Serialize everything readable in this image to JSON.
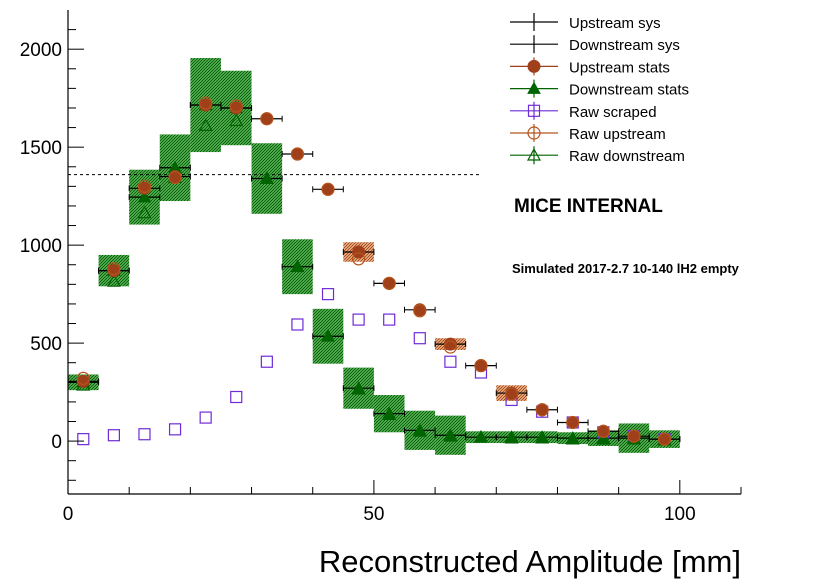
{
  "chart_data": {
    "type": "scatter",
    "title": "",
    "xlabel": "Reconstructed Amplitude [mm]",
    "ylabel": "",
    "xlim": [
      0,
      110
    ],
    "ylim": [
      -270,
      2200
    ],
    "x_ticks": [
      0,
      50,
      100
    ],
    "x_tick_labels": [
      "0",
      "50",
      "100"
    ],
    "y_ticks": [
      0,
      500,
      1000,
      1500,
      2000
    ],
    "y_tick_labels": [
      "0",
      "500",
      "1000",
      "1500",
      "2000"
    ],
    "grid": false,
    "legend_position": "top-right",
    "reference_line": {
      "y": 1360,
      "x_from": 0,
      "x_to": 67.5,
      "style": "dashed"
    },
    "x": [
      2.5,
      7.5,
      12.5,
      17.5,
      22.5,
      27.5,
      32.5,
      37.5,
      42.5,
      47.5,
      52.5,
      57.5,
      62.5,
      67.5,
      72.5,
      77.5,
      82.5,
      87.5,
      92.5,
      97.5
    ],
    "x_bin_halfwidth": 2.5,
    "series": [
      {
        "name": "Upstream sys",
        "kind": "error-bar",
        "color": "#000000",
        "values": [
          305,
          870,
          1290,
          1350,
          1715,
          1700,
          1645,
          1465,
          1285,
          965,
          805,
          670,
          495,
          385,
          245,
          160,
          95,
          50,
          25,
          10
        ],
        "band_halfheight": [
          0,
          0,
          0,
          0,
          0,
          0,
          0,
          0,
          0,
          50,
          0,
          0,
          30,
          0,
          40,
          0,
          0,
          0,
          0,
          0
        ]
      },
      {
        "name": "Downstream sys",
        "kind": "error-bar",
        "color": "#000000",
        "values": [
          300,
          870,
          1245,
          1395,
          1715,
          1700,
          1340,
          890,
          535,
          270,
          140,
          55,
          30,
          20,
          20,
          20,
          15,
          15,
          15,
          10
        ],
        "band_halfheight": [
          40,
          80,
          140,
          170,
          240,
          190,
          180,
          140,
          140,
          105,
          95,
          100,
          100,
          30,
          30,
          30,
          30,
          40,
          75,
          45
        ]
      },
      {
        "name": "Upstream stats",
        "kind": "filled-circle",
        "color": "#a0401b",
        "values": [
          305,
          870,
          1290,
          1350,
          1715,
          1700,
          1645,
          1465,
          1285,
          965,
          805,
          670,
          495,
          385,
          245,
          160,
          95,
          50,
          25,
          10
        ]
      },
      {
        "name": "Downstream stats",
        "kind": "filled-triangle",
        "color": "#006400",
        "values": [
          300,
          870,
          1245,
          1395,
          1715,
          1700,
          1340,
          890,
          535,
          270,
          140,
          55,
          30,
          20,
          20,
          20,
          15,
          15,
          15,
          10
        ]
      },
      {
        "name": "Raw scraped",
        "kind": "open-square",
        "color": "#6f2bd6",
        "values": [
          10,
          30,
          35,
          60,
          120,
          225,
          405,
          595,
          750,
          620,
          620,
          525,
          405,
          350,
          210,
          150,
          95,
          45,
          25,
          10
        ]
      },
      {
        "name": "Raw upstream",
        "kind": "open-circle",
        "color": "#b5541c",
        "values": [
          320,
          880,
          1300,
          1345,
          1725,
          1710,
          1645,
          1465,
          1285,
          930,
          805,
          665,
          480,
          385,
          240,
          160,
          95,
          50,
          25,
          10
        ]
      },
      {
        "name": "Raw downstream",
        "kind": "open-triangle",
        "color": "#006400",
        "values": [
          285,
          815,
          1165,
          1345,
          1610,
          1635,
          1340,
          890,
          535,
          265,
          135,
          50,
          25,
          20,
          15,
          15,
          10,
          10,
          10,
          5
        ]
      }
    ],
    "annotations": [
      "MICE INTERNAL",
      "Simulated 2017-2.7 10-140 lH2 empty"
    ]
  },
  "colors": {
    "sys_band_downstream": "#2e8b2e",
    "sys_band_upstream": "#c8744a"
  }
}
